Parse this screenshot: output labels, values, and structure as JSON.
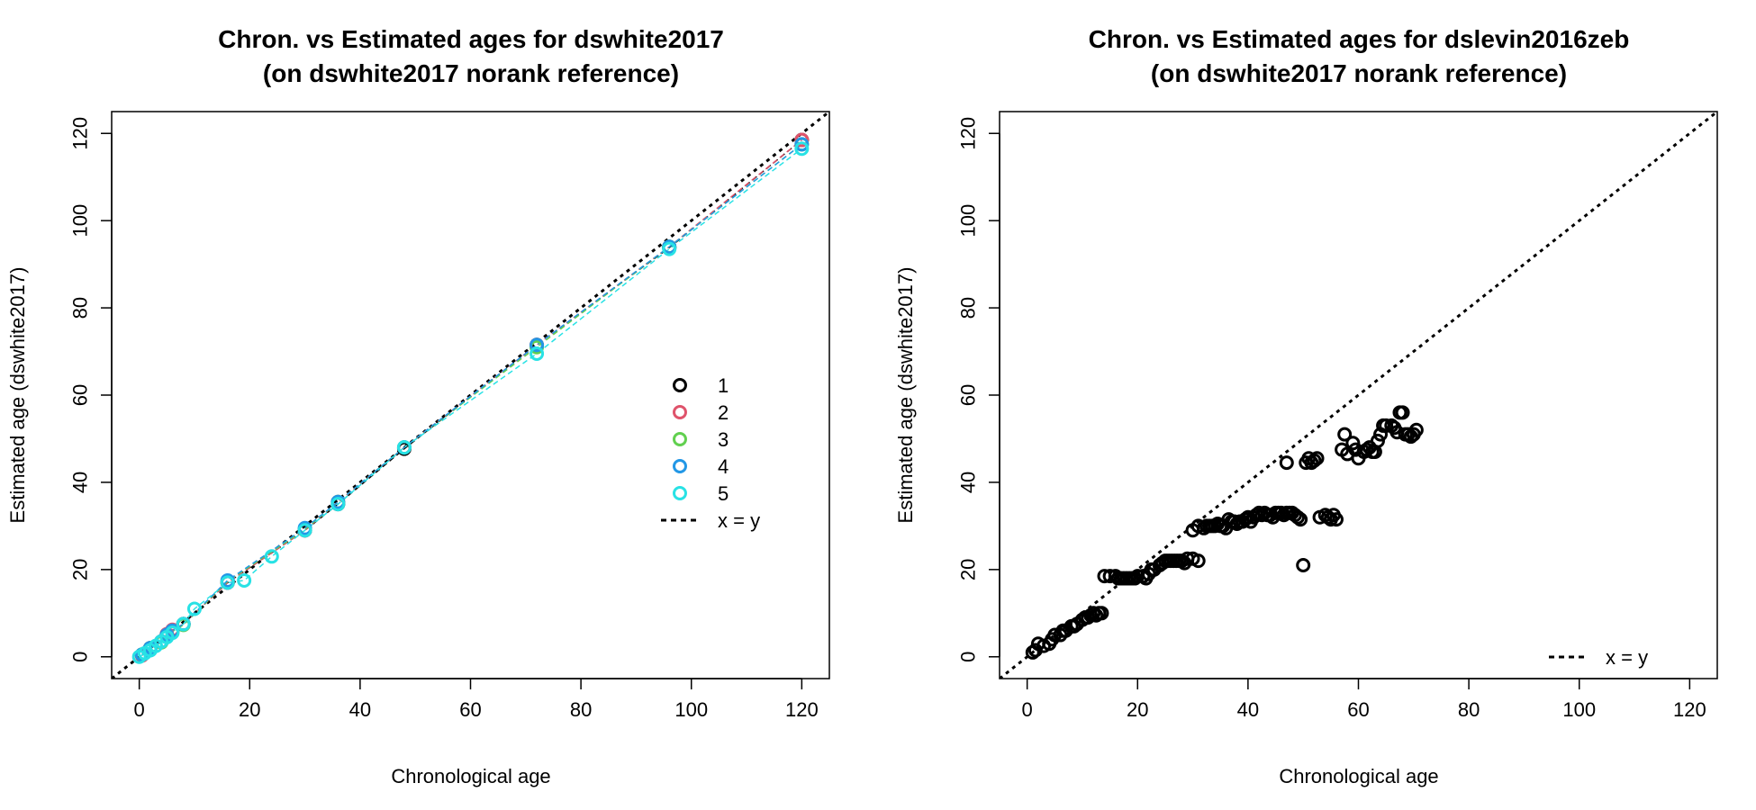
{
  "chart_data": [
    {
      "type": "scatter",
      "title": "Chron. vs Estimated ages for dswhite2017",
      "subtitle": "(on dswhite2017 norank reference)",
      "xlabel": "Chronological age",
      "ylabel": "Estimated age (dswhite2017)",
      "xlim": [
        -5,
        125
      ],
      "ylim": [
        -5,
        125
      ],
      "xticks": [
        "0",
        "20",
        "40",
        "60",
        "80",
        "100",
        "120"
      ],
      "yticks": [
        "0",
        "20",
        "40",
        "60",
        "80",
        "100",
        "120"
      ],
      "grid": false,
      "legend_position": "bottom-right",
      "legend": [
        {
          "label": "1",
          "color": "#000000",
          "kind": "point"
        },
        {
          "label": "2",
          "color": "#DF536B",
          "kind": "point"
        },
        {
          "label": "3",
          "color": "#61D04F",
          "kind": "point"
        },
        {
          "label": "4",
          "color": "#2297E6",
          "kind": "point"
        },
        {
          "label": "5",
          "color": "#28E2E5",
          "kind": "point"
        },
        {
          "label": "x = y",
          "color": "#000000",
          "kind": "dashed-line"
        }
      ],
      "reference_line": "x = y",
      "series": [
        {
          "name": "1",
          "color": "#000000",
          "points": [
            [
              0.5,
              0.5
            ],
            [
              2,
              2
            ],
            [
              4,
              3.5
            ],
            [
              5,
              5
            ],
            [
              6,
              6
            ],
            [
              8,
              7.5
            ],
            [
              16,
              17
            ],
            [
              30,
              29
            ],
            [
              36,
              35
            ],
            [
              48,
              47.7
            ],
            [
              72,
              71.5
            ],
            [
              96,
              93.8
            ],
            [
              120,
              118.5
            ]
          ]
        },
        {
          "name": "2",
          "color": "#DF536B",
          "points": [
            [
              0.5,
              0.3
            ],
            [
              2,
              2
            ],
            [
              4,
              3.5
            ],
            [
              5,
              5.2
            ],
            [
              6,
              6.2
            ],
            [
              8,
              7.5
            ],
            [
              16,
              17
            ],
            [
              30,
              29
            ],
            [
              36,
              35.5
            ],
            [
              48,
              48
            ],
            [
              72,
              71.5
            ],
            [
              96,
              94
            ],
            [
              120,
              118.5
            ]
          ]
        },
        {
          "name": "3",
          "color": "#61D04F",
          "points": [
            [
              0.5,
              0.5
            ],
            [
              2,
              2
            ],
            [
              4,
              3.3
            ],
            [
              5,
              4.8
            ],
            [
              6,
              5.8
            ],
            [
              8,
              7.3
            ],
            [
              16,
              17.3
            ],
            [
              30,
              29.2
            ],
            [
              36,
              35.5
            ],
            [
              48,
              48
            ],
            [
              72,
              71
            ],
            [
              96,
              94
            ],
            [
              120,
              117.5
            ]
          ]
        },
        {
          "name": "4",
          "color": "#2297E6",
          "points": [
            [
              0.5,
              0.5
            ],
            [
              2,
              2
            ],
            [
              4,
              3.5
            ],
            [
              5,
              5
            ],
            [
              6,
              6
            ],
            [
              8,
              7.5
            ],
            [
              16,
              17.5
            ],
            [
              30,
              29.5
            ],
            [
              36,
              35.5
            ],
            [
              48,
              48
            ],
            [
              72,
              71.5
            ],
            [
              96,
              94
            ],
            [
              120,
              117.5
            ]
          ]
        },
        {
          "name": "5",
          "color": "#28E2E5",
          "points": [
            [
              0,
              0
            ],
            [
              1,
              0.8
            ],
            [
              2,
              1.5
            ],
            [
              3,
              2.5
            ],
            [
              4,
              3.5
            ],
            [
              5,
              4.5
            ],
            [
              6,
              5.5
            ],
            [
              8,
              7.5
            ],
            [
              10,
              11
            ],
            [
              16,
              17
            ],
            [
              19,
              17.5
            ],
            [
              24,
              23
            ],
            [
              30,
              29
            ],
            [
              36,
              35
            ],
            [
              48,
              48
            ],
            [
              72,
              69.5
            ],
            [
              96,
              93.5
            ],
            [
              120,
              116.5
            ]
          ]
        }
      ]
    },
    {
      "type": "scatter",
      "title": "Chron. vs Estimated ages for dslevin2016zeb",
      "subtitle": "(on dswhite2017 norank reference)",
      "xlabel": "Chronological age",
      "ylabel": "Estimated age (dswhite2017)",
      "xlim": [
        -5,
        125
      ],
      "ylim": [
        -5,
        125
      ],
      "xticks": [
        "0",
        "20",
        "40",
        "60",
        "80",
        "100",
        "120"
      ],
      "yticks": [
        "0",
        "20",
        "40",
        "60",
        "80",
        "100",
        "120"
      ],
      "grid": false,
      "legend_position": "bottom-right",
      "legend": [
        {
          "label": "x = y",
          "color": "#000000",
          "kind": "dashed-line"
        }
      ],
      "reference_line": "x = y",
      "series": [
        {
          "color": "#000000",
          "points": [
            [
              1,
              1
            ],
            [
              1.5,
              1.5
            ],
            [
              2,
              3
            ],
            [
              3,
              2.5
            ],
            [
              4,
              3
            ],
            [
              4.5,
              4
            ],
            [
              5,
              5
            ],
            [
              6,
              5
            ],
            [
              6.5,
              6
            ],
            [
              7,
              6
            ],
            [
              8,
              7
            ],
            [
              8.5,
              7
            ],
            [
              9,
              7.5
            ],
            [
              10,
              8.5
            ],
            [
              10.5,
              9
            ],
            [
              11,
              9
            ],
            [
              11.5,
              9.5
            ],
            [
              12,
              10
            ],
            [
              12.5,
              9.5
            ],
            [
              13,
              10
            ],
            [
              13.5,
              10
            ],
            [
              14,
              18.5
            ],
            [
              15,
              18.5
            ],
            [
              16,
              18.5
            ],
            [
              16.5,
              18
            ],
            [
              17,
              18
            ],
            [
              17.5,
              18
            ],
            [
              18,
              18
            ],
            [
              18.5,
              18
            ],
            [
              19,
              18
            ],
            [
              19.5,
              18
            ],
            [
              20,
              18.5
            ],
            [
              21,
              18.5
            ],
            [
              21.5,
              18
            ],
            [
              22,
              19
            ],
            [
              22.5,
              20
            ],
            [
              23,
              20
            ],
            [
              24,
              21
            ],
            [
              24.5,
              21.5
            ],
            [
              25,
              22
            ],
            [
              25.5,
              22
            ],
            [
              26,
              22
            ],
            [
              26.5,
              22
            ],
            [
              27,
              22
            ],
            [
              27.5,
              22
            ],
            [
              28,
              22
            ],
            [
              28.5,
              21.5
            ],
            [
              29,
              22.5
            ],
            [
              30,
              22.5
            ],
            [
              31,
              22
            ],
            [
              30,
              29
            ],
            [
              31,
              30
            ],
            [
              32,
              29.5
            ],
            [
              32.5,
              30
            ],
            [
              33,
              30
            ],
            [
              33.5,
              30
            ],
            [
              34,
              30
            ],
            [
              34.5,
              30.5
            ],
            [
              35,
              30
            ],
            [
              35.5,
              30
            ],
            [
              36,
              29.5
            ],
            [
              36.5,
              31.5
            ],
            [
              37,
              31
            ],
            [
              37.5,
              31
            ],
            [
              38,
              30.5
            ],
            [
              38.5,
              31
            ],
            [
              39,
              31
            ],
            [
              39.5,
              31.5
            ],
            [
              40,
              32
            ],
            [
              40.5,
              31
            ],
            [
              41,
              32
            ],
            [
              41.5,
              32.5
            ],
            [
              42,
              33
            ],
            [
              42.5,
              32.5
            ],
            [
              43,
              33
            ],
            [
              43.5,
              32.5
            ],
            [
              44,
              32.5
            ],
            [
              44.5,
              32
            ],
            [
              45,
              33
            ],
            [
              45.5,
              33
            ],
            [
              46,
              33
            ],
            [
              46.5,
              32.5
            ],
            [
              47,
              33
            ],
            [
              47.5,
              33
            ],
            [
              48,
              33
            ],
            [
              48.5,
              32.5
            ],
            [
              49,
              32
            ],
            [
              49.5,
              31.5
            ],
            [
              47,
              44.5
            ],
            [
              50,
              21
            ],
            [
              50.5,
              44.5
            ],
            [
              51,
              45.5
            ],
            [
              51.5,
              44.5
            ],
            [
              52,
              45
            ],
            [
              52.5,
              45.5
            ],
            [
              53,
              32
            ],
            [
              54,
              32.5
            ],
            [
              54.5,
              32
            ],
            [
              55,
              31.5
            ],
            [
              55.5,
              32.5
            ],
            [
              56,
              31.5
            ],
            [
              57,
              47.5
            ],
            [
              57.5,
              51
            ],
            [
              58,
              46.5
            ],
            [
              59,
              49
            ],
            [
              59.5,
              47.5
            ],
            [
              60,
              45.5
            ],
            [
              61,
              47
            ],
            [
              61.5,
              47.5
            ],
            [
              62,
              48
            ],
            [
              62.5,
              47
            ],
            [
              63,
              47
            ],
            [
              63.5,
              49.5
            ],
            [
              64,
              51
            ],
            [
              64.5,
              53
            ],
            [
              65,
              53
            ],
            [
              66,
              53
            ],
            [
              66.5,
              52.5
            ],
            [
              67,
              51.5
            ],
            [
              67.5,
              56
            ],
            [
              68,
              56
            ],
            [
              68.5,
              51
            ],
            [
              69,
              51
            ],
            [
              69.5,
              50.5
            ],
            [
              70,
              51
            ],
            [
              70.5,
              52
            ]
          ]
        }
      ]
    }
  ]
}
